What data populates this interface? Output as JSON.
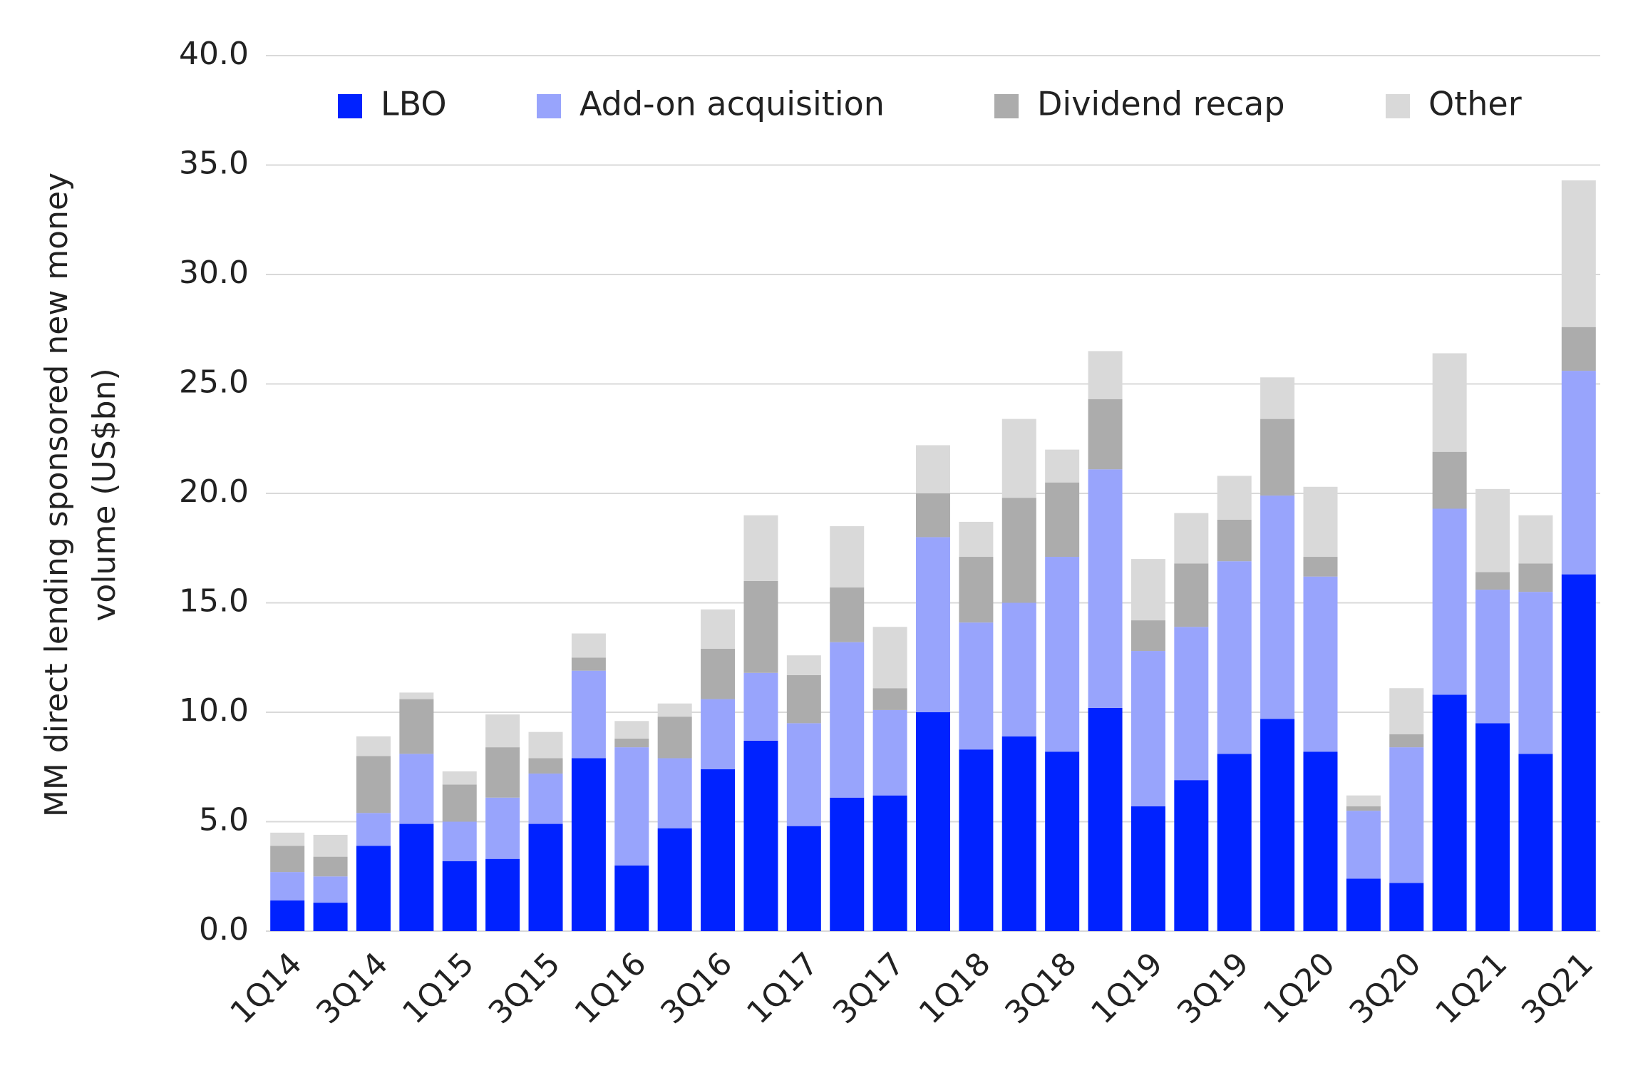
{
  "chart_data": {
    "type": "stacked_bar",
    "y_label_lines": [
      "MM direct lending sponsored new money",
      "volume (US$bn)"
    ],
    "categories": [
      "1Q14",
      null,
      "3Q14",
      null,
      "1Q15",
      null,
      "3Q15",
      null,
      "1Q16",
      null,
      "3Q16",
      null,
      "1Q17",
      null,
      "3Q17",
      null,
      "1Q18",
      null,
      "3Q18",
      null,
      "1Q19",
      null,
      "3Q19",
      null,
      "1Q20",
      null,
      "3Q20",
      null,
      "1Q21",
      null,
      "3Q21"
    ],
    "series": [
      {
        "name": "LBO",
        "color": "#0022ff",
        "values": [
          1.4,
          1.3,
          3.9,
          4.9,
          3.2,
          3.3,
          4.9,
          7.9,
          3.0,
          4.7,
          7.4,
          8.7,
          4.8,
          6.1,
          6.2,
          10.0,
          8.3,
          8.9,
          8.2,
          10.2,
          5.7,
          6.9,
          8.1,
          9.7,
          8.2,
          2.4,
          2.2,
          10.8,
          9.5,
          8.1,
          16.3
        ]
      },
      {
        "name": "Add-on acquisition",
        "color": "#98a4fc",
        "values": [
          1.3,
          1.2,
          1.5,
          3.2,
          1.8,
          2.8,
          2.3,
          4.0,
          5.4,
          3.2,
          3.2,
          3.1,
          4.7,
          7.1,
          3.9,
          8.0,
          5.8,
          6.1,
          8.9,
          10.9,
          7.1,
          7.0,
          8.8,
          10.2,
          8.0,
          3.1,
          6.2,
          8.5,
          6.1,
          7.4,
          9.3
        ]
      },
      {
        "name": "Dividend recap",
        "color": "#acacac",
        "values": [
          1.2,
          0.9,
          2.6,
          2.5,
          1.7,
          2.3,
          0.7,
          0.6,
          0.4,
          1.9,
          2.3,
          4.2,
          2.2,
          2.5,
          1.0,
          2.0,
          3.0,
          4.8,
          3.4,
          3.2,
          1.4,
          2.9,
          1.9,
          3.5,
          0.9,
          0.2,
          0.6,
          2.6,
          0.8,
          1.3,
          2.0
        ]
      },
      {
        "name": "Other",
        "color": "#d9d9d9",
        "values": [
          0.6,
          1.0,
          0.9,
          0.3,
          0.6,
          1.5,
          1.2,
          1.1,
          0.8,
          0.6,
          1.8,
          3.0,
          0.9,
          2.8,
          2.8,
          2.2,
          1.6,
          3.6,
          1.5,
          2.2,
          2.8,
          2.3,
          2.0,
          1.9,
          3.2,
          0.5,
          2.1,
          4.5,
          3.8,
          2.2,
          6.7
        ]
      }
    ],
    "ylim": [
      0,
      40
    ],
    "yticks": [
      {
        "value": 0,
        "label": "0.0"
      },
      {
        "value": 5,
        "label": "5.0"
      },
      {
        "value": 10,
        "label": "10.0"
      },
      {
        "value": 15,
        "label": "15.0"
      },
      {
        "value": 20,
        "label": "20.0"
      },
      {
        "value": 25,
        "label": "25.0"
      },
      {
        "value": 30,
        "label": "30.0"
      },
      {
        "value": 35,
        "label": "35.0"
      },
      {
        "value": 40,
        "label": "40.0"
      }
    ],
    "grid": true,
    "legend": "top"
  }
}
